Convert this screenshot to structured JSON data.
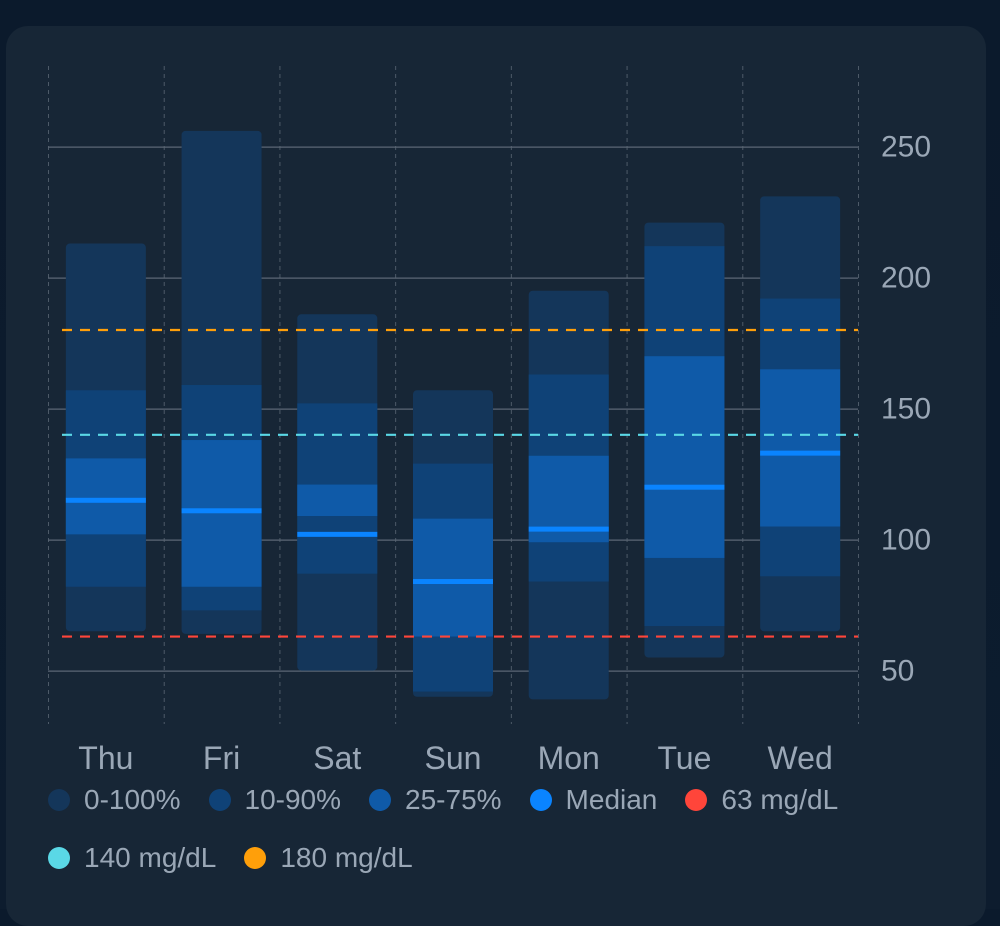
{
  "chart_data": {
    "type": "bar",
    "subtype": "percentile-range",
    "categories": [
      "Thu",
      "Fri",
      "Sat",
      "Sun",
      "Mon",
      "Tue",
      "Wed"
    ],
    "series": [
      {
        "name": "0-100%",
        "low": [
          65,
          64,
          50,
          40,
          39,
          55,
          65
        ],
        "high": [
          213,
          256,
          186,
          157,
          195,
          221,
          231
        ]
      },
      {
        "name": "10-90%",
        "low": [
          82,
          73,
          87,
          42,
          84,
          67,
          86
        ],
        "high": [
          157,
          159,
          152,
          129,
          163,
          212,
          192
        ]
      },
      {
        "name": "25-75%",
        "low": [
          102,
          82,
          109,
          63,
          99,
          93,
          105
        ],
        "high": [
          131,
          138,
          121,
          108,
          132,
          170,
          165
        ]
      }
    ],
    "median": {
      "name": "Median",
      "values": [
        115,
        111,
        102,
        84,
        104,
        120,
        133
      ]
    },
    "thresholds": [
      {
        "label": "63 mg/dL",
        "value": 63,
        "color": "#ff453a"
      },
      {
        "label": "140 mg/dL",
        "value": 140,
        "color": "#5ad8e6"
      },
      {
        "label": "180 mg/dL",
        "value": 180,
        "color": "#ff9f0a"
      }
    ],
    "yticks": [
      50,
      100,
      150,
      200,
      250
    ],
    "ylim": [
      30,
      280
    ],
    "y_axis_side": "right",
    "grid": true,
    "legend_position": "bottom",
    "xlabel": "",
    "ylabel": "",
    "title": ""
  },
  "colors": {
    "band_0_100": "#14365a",
    "band_10_90": "#0f4277",
    "band_25_75": "#0f5aa8",
    "median": "#0a84ff",
    "grid": "#5b6775",
    "tick_text": "#9aa7b6"
  },
  "legend": [
    {
      "label": "0-100%",
      "color": "#14365a"
    },
    {
      "label": "10-90%",
      "color": "#0f4277"
    },
    {
      "label": "25-75%",
      "color": "#0f5aa8"
    },
    {
      "label": "Median",
      "color": "#0a84ff"
    },
    {
      "label": "63 mg/dL",
      "color": "#ff453a"
    },
    {
      "label": "140 mg/dL",
      "color": "#5ad8e6"
    },
    {
      "label": "180 mg/dL",
      "color": "#ff9f0a"
    }
  ]
}
